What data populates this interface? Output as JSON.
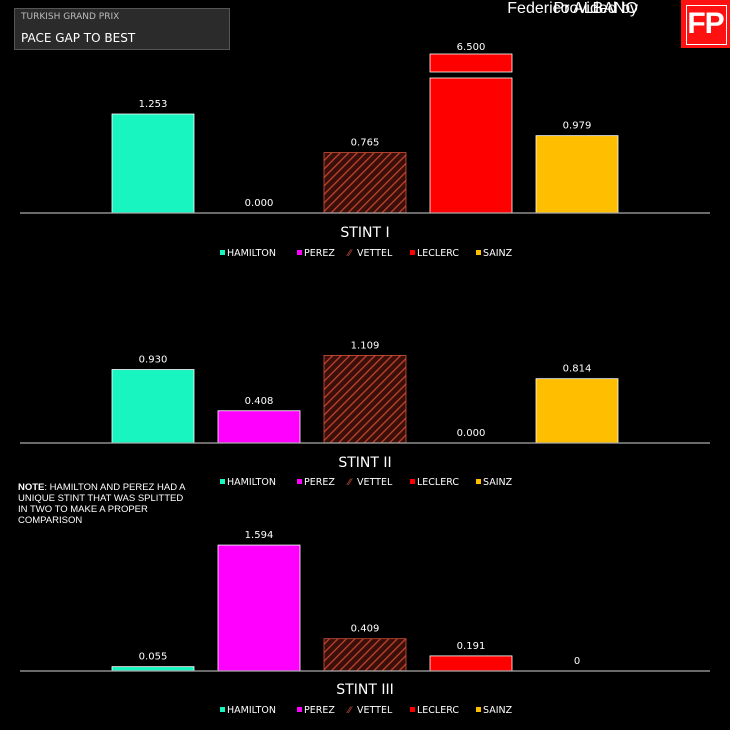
{
  "header": {
    "event": "TURKISH GRAND PRIX",
    "title": "PACE GAP TO BEST",
    "credit_small": "Provided by",
    "credit_name": "Federico ALBANO",
    "logo": "FP"
  },
  "note": {
    "label": "NOTE",
    "text": ": HAMILTON AND PEREZ HAD A UNIQUE STINT THAT WAS SPLITTED IN TWO TO MAKE A PROPER COMPARISON"
  },
  "colors": {
    "HAMILTON": "#19f5c0",
    "PEREZ": "#ff00ff",
    "VETTEL": "#b4382a",
    "LECLERC": "#ff0000",
    "SAINZ": "#ffbf00",
    "axis": "#aaaaaa"
  },
  "chart_data": [
    {
      "type": "bar",
      "title": "STINT I",
      "categories": [
        "HAMILTON",
        "PEREZ",
        "VETTEL",
        "LECLERC",
        "SAINZ"
      ],
      "values": [
        1.253,
        0.0,
        0.765,
        6.5,
        0.979
      ],
      "labels": [
        "1.253",
        "0.000",
        "0.765",
        "6.500",
        "0.979"
      ],
      "broken_axis": "LECLERC bar truncated",
      "legend": "bottom"
    },
    {
      "type": "bar",
      "title": "STINT II",
      "categories": [
        "HAMILTON",
        "PEREZ",
        "VETTEL",
        "LECLERC",
        "SAINZ"
      ],
      "values": [
        0.93,
        0.408,
        1.109,
        0.0,
        0.814
      ],
      "labels": [
        "0.930",
        "0.408",
        "1.109",
        "0.000",
        "0.814"
      ],
      "legend": "bottom"
    },
    {
      "type": "bar",
      "title": "STINT III",
      "categories": [
        "HAMILTON",
        "PEREZ",
        "VETTEL",
        "LECLERC",
        "SAINZ"
      ],
      "values": [
        0.055,
        1.594,
        0.409,
        0.191,
        0
      ],
      "labels": [
        "0.055",
        "1.594",
        "0.409",
        "0.191",
        "0"
      ],
      "legend": "bottom"
    }
  ]
}
